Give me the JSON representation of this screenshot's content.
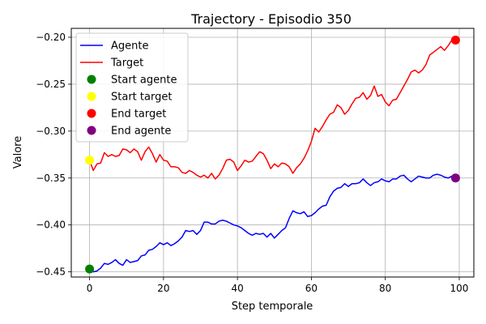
{
  "chart_data": {
    "type": "line",
    "title": "Trajectory - Episodio 350",
    "xlabel": "Step temporale",
    "ylabel": "Valore",
    "xlim": [
      -4.95,
      103.95
    ],
    "ylim": [
      -0.4555,
      -0.1905
    ],
    "grid": true,
    "legend_position": "top-left",
    "x_ticks": [
      0,
      20,
      40,
      60,
      80,
      100
    ],
    "x_tick_labels": [
      "0",
      "20",
      "40",
      "60",
      "80",
      "100"
    ],
    "y_ticks": [
      -0.45,
      -0.4,
      -0.35,
      -0.3,
      -0.25,
      -0.2
    ],
    "y_tick_labels": [
      "−0.45",
      "−0.40",
      "−0.35",
      "−0.30",
      "−0.25",
      "−0.20"
    ],
    "series": [
      {
        "name": "Agente",
        "color": "#0000ff",
        "x_start": 0,
        "values": [
          -0.447,
          -0.45,
          -0.449,
          -0.446,
          -0.441,
          -0.442,
          -0.44,
          -0.437,
          -0.441,
          -0.443,
          -0.437,
          -0.44,
          -0.439,
          -0.438,
          -0.433,
          -0.432,
          -0.427,
          -0.426,
          -0.423,
          -0.419,
          -0.421,
          -0.419,
          -0.422,
          -0.42,
          -0.417,
          -0.413,
          -0.406,
          -0.407,
          -0.406,
          -0.41,
          -0.406,
          -0.397,
          -0.397,
          -0.399,
          -0.399,
          -0.396,
          -0.395,
          -0.396,
          -0.398,
          -0.4,
          -0.401,
          -0.403,
          -0.406,
          -0.409,
          -0.411,
          -0.409,
          -0.41,
          -0.409,
          -0.413,
          -0.409,
          -0.414,
          -0.41,
          -0.406,
          -0.403,
          -0.393,
          -0.385,
          -0.387,
          -0.388,
          -0.386,
          -0.391,
          -0.39,
          -0.387,
          -0.383,
          -0.38,
          -0.379,
          -0.37,
          -0.364,
          -0.361,
          -0.36,
          -0.356,
          -0.359,
          -0.356,
          -0.356,
          -0.355,
          -0.351,
          -0.355,
          -0.358,
          -0.355,
          -0.354,
          -0.351,
          -0.353,
          -0.354,
          -0.351,
          -0.351,
          -0.348,
          -0.347,
          -0.351,
          -0.354,
          -0.351,
          -0.348,
          -0.349,
          -0.35,
          -0.35,
          -0.347,
          -0.346,
          -0.347,
          -0.349,
          -0.35,
          -0.348,
          -0.35
        ]
      },
      {
        "name": "Target",
        "color": "#ff0000",
        "x_start": 0,
        "values": [
          -0.331,
          -0.342,
          -0.335,
          -0.334,
          -0.323,
          -0.327,
          -0.325,
          -0.327,
          -0.326,
          -0.319,
          -0.32,
          -0.323,
          -0.319,
          -0.322,
          -0.331,
          -0.322,
          -0.317,
          -0.324,
          -0.333,
          -0.325,
          -0.331,
          -0.332,
          -0.338,
          -0.338,
          -0.339,
          -0.344,
          -0.345,
          -0.342,
          -0.344,
          -0.347,
          -0.349,
          -0.347,
          -0.35,
          -0.345,
          -0.351,
          -0.347,
          -0.34,
          -0.331,
          -0.33,
          -0.333,
          -0.342,
          -0.337,
          -0.331,
          -0.333,
          -0.332,
          -0.327,
          -0.322,
          -0.324,
          -0.331,
          -0.34,
          -0.335,
          -0.338,
          -0.334,
          -0.335,
          -0.338,
          -0.345,
          -0.339,
          -0.335,
          -0.329,
          -0.321,
          -0.311,
          -0.297,
          -0.301,
          -0.295,
          -0.288,
          -0.282,
          -0.28,
          -0.272,
          -0.275,
          -0.282,
          -0.278,
          -0.271,
          -0.265,
          -0.264,
          -0.259,
          -0.266,
          -0.262,
          -0.252,
          -0.263,
          -0.261,
          -0.269,
          -0.273,
          -0.267,
          -0.266,
          -0.259,
          -0.252,
          -0.245,
          -0.237,
          -0.235,
          -0.238,
          -0.235,
          -0.229,
          -0.219,
          -0.216,
          -0.213,
          -0.21,
          -0.214,
          -0.209,
          -0.203,
          -0.203
        ]
      }
    ],
    "markers": [
      {
        "name": "Start agente",
        "x": 0,
        "y": -0.447,
        "color": "#008000"
      },
      {
        "name": "Start target",
        "x": 0,
        "y": -0.331,
        "color": "#ffff00"
      },
      {
        "name": "End target",
        "x": 99,
        "y": -0.203,
        "color": "#ff0000"
      },
      {
        "name": "End agente",
        "x": 99,
        "y": -0.35,
        "color": "#800080"
      }
    ]
  }
}
